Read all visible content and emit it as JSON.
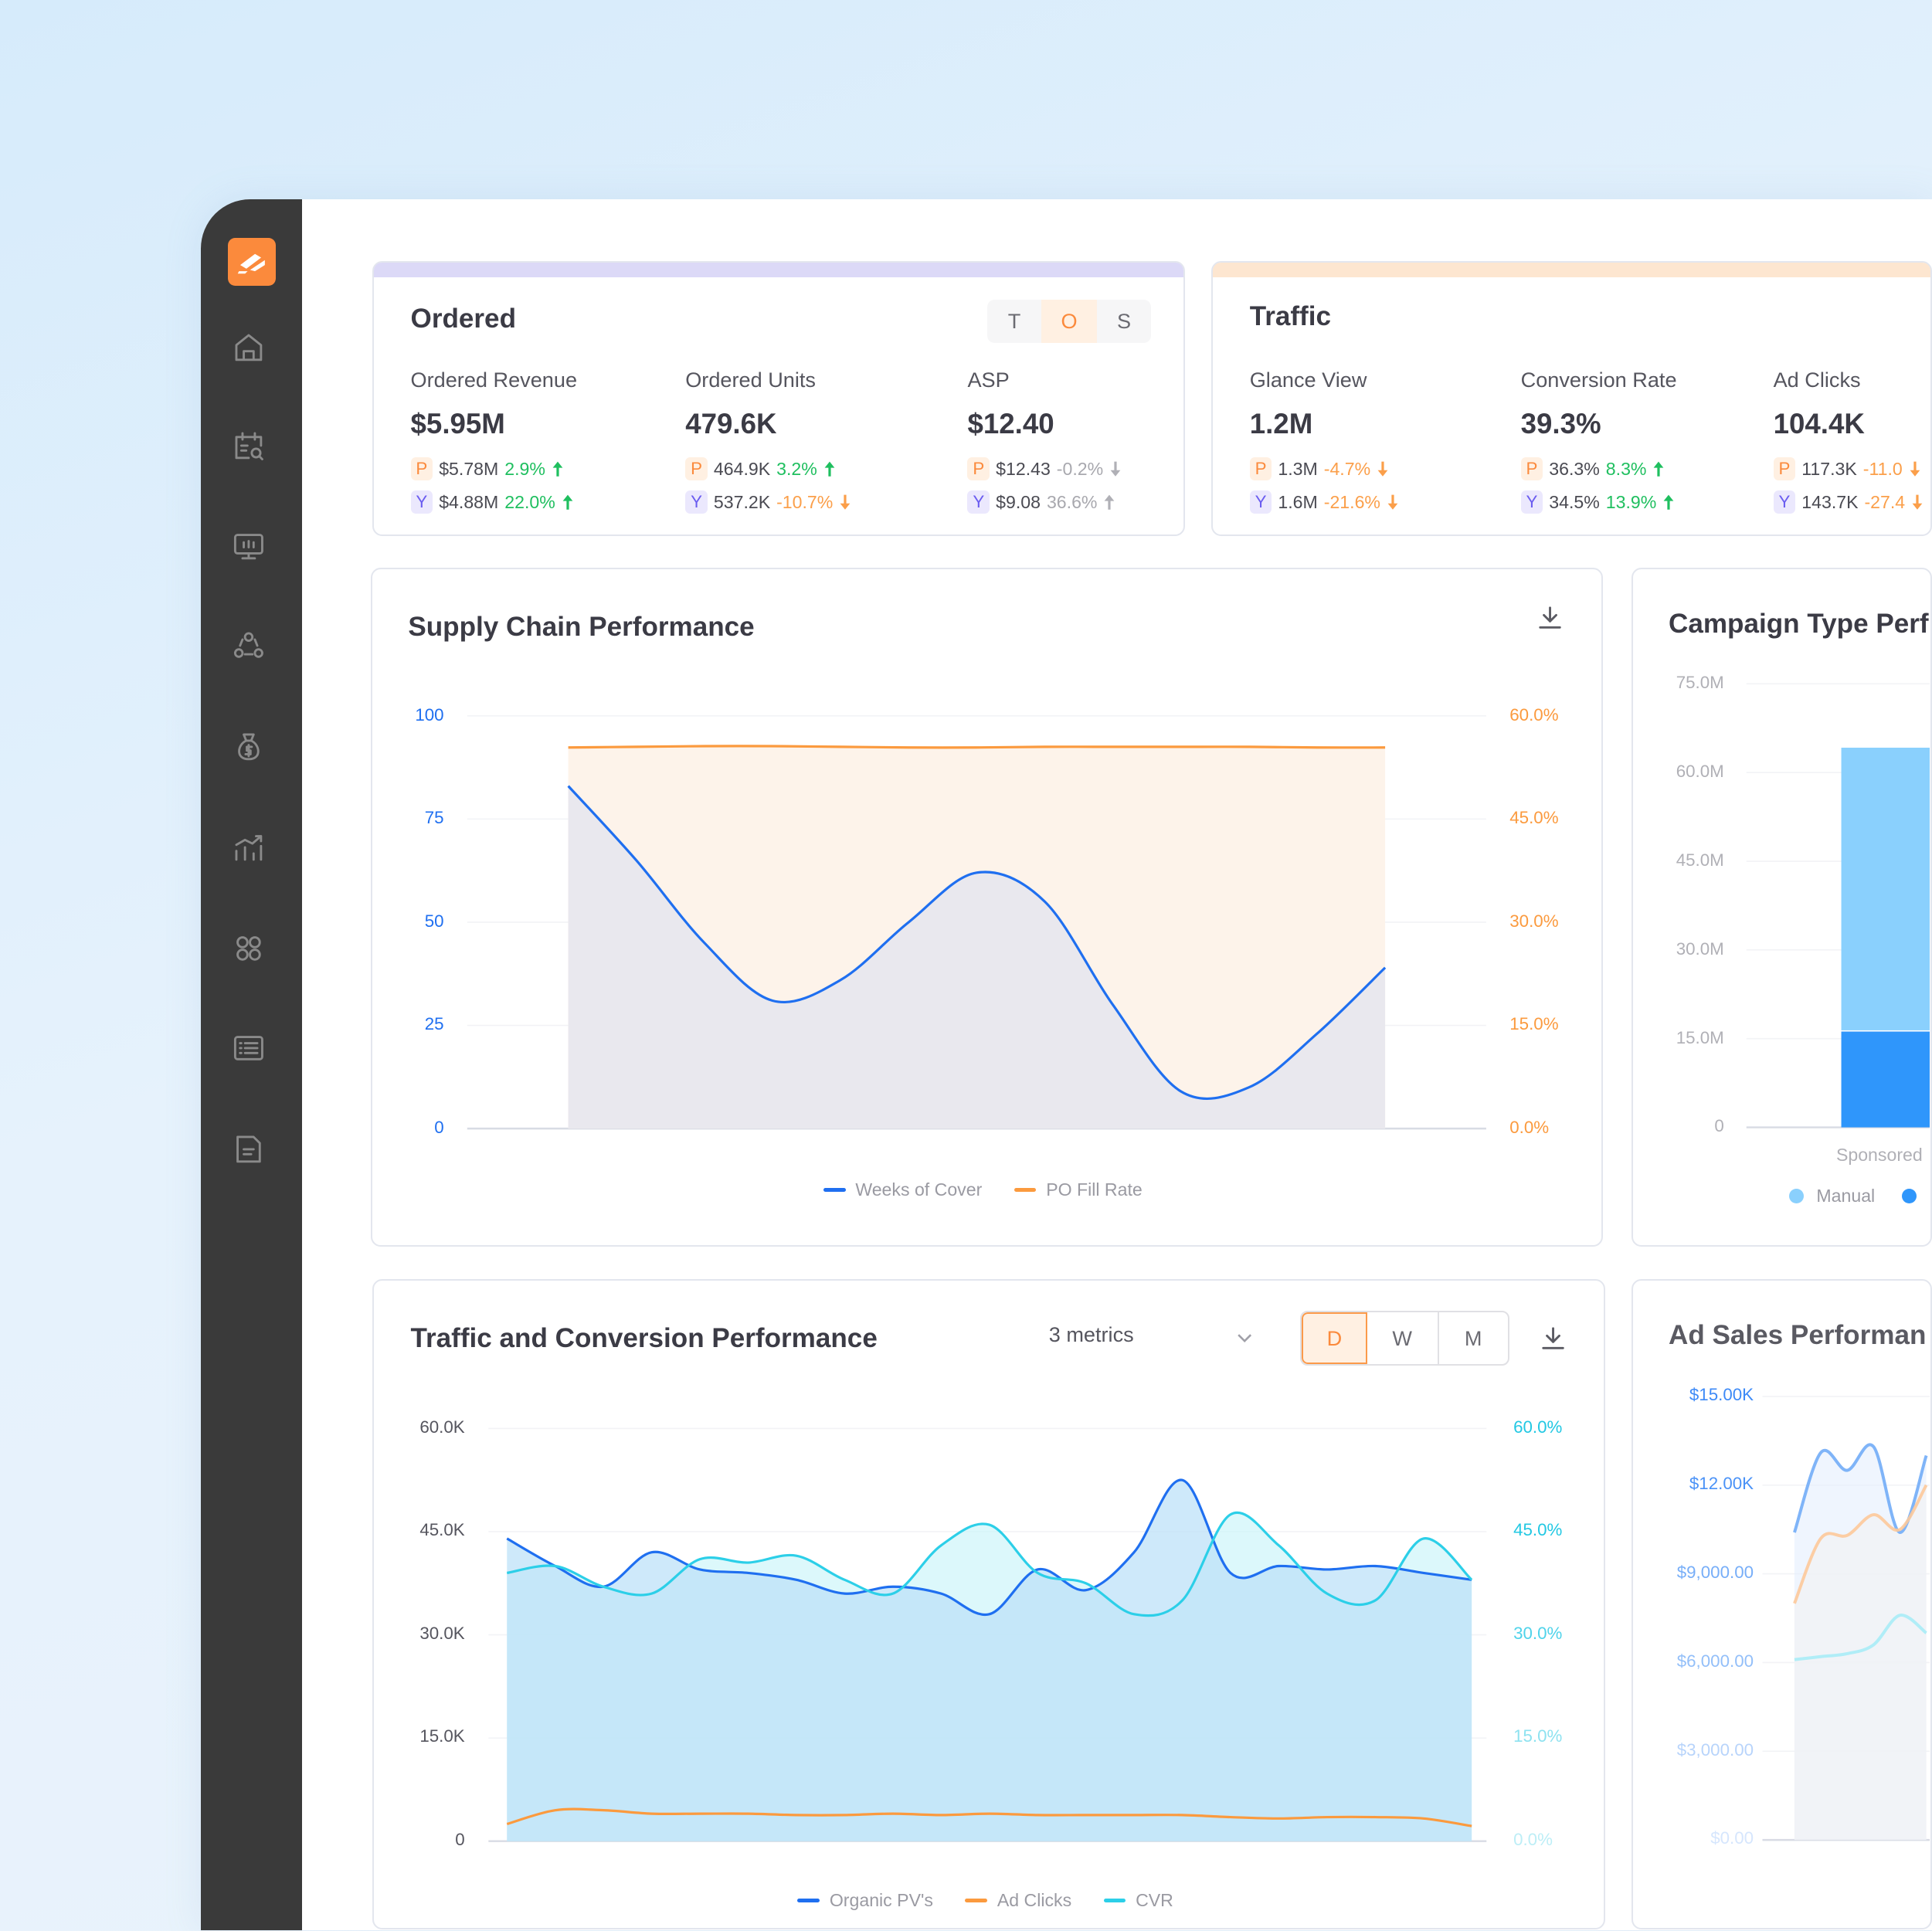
{
  "sidebar": {
    "logo": "logo",
    "items": [
      {
        "icon": "home-icon"
      },
      {
        "icon": "calendar-search-icon"
      },
      {
        "icon": "presentation-chart-icon"
      },
      {
        "icon": "network-icon"
      },
      {
        "icon": "money-bag-icon"
      },
      {
        "icon": "growth-chart-icon"
      },
      {
        "icon": "command-icon"
      },
      {
        "icon": "list-icon"
      },
      {
        "icon": "document-icon"
      }
    ]
  },
  "ordered": {
    "title": "Ordered",
    "toggle": [
      "T",
      "O",
      "S"
    ],
    "toggle_active": "O",
    "band_color": "#dcd9f7",
    "metrics": [
      {
        "label": "Ordered Revenue",
        "value": "$5.95M",
        "p_value": "$5.78M",
        "p_change": "2.9%",
        "p_dir": "up",
        "y_value": "$4.88M",
        "y_change": "22.0%",
        "y_dir": "up"
      },
      {
        "label": "Ordered Units",
        "value": "479.6K",
        "p_value": "464.9K",
        "p_change": "3.2%",
        "p_dir": "up",
        "y_value": "537.2K",
        "y_change": "-10.7%",
        "y_dir": "down"
      },
      {
        "label": "ASP",
        "value": "$12.40",
        "p_value": "$12.43",
        "p_change": "-0.2%",
        "p_dir": "neutral-down",
        "y_value": "$9.08",
        "y_change": "36.6%",
        "y_dir": "neutral-up"
      }
    ]
  },
  "traffic": {
    "title": "Traffic",
    "band_color": "#fde6d0",
    "metrics": [
      {
        "label": "Glance View",
        "value": "1.2M",
        "p_value": "1.3M",
        "p_change": "-4.7%",
        "p_dir": "down",
        "y_value": "1.6M",
        "y_change": "-21.6%",
        "y_dir": "down"
      },
      {
        "label": "Conversion Rate",
        "value": "39.3%",
        "p_value": "36.3%",
        "p_change": "8.3%",
        "p_dir": "up",
        "y_value": "34.5%",
        "y_change": "13.9%",
        "y_dir": "up"
      },
      {
        "label": "Ad Clicks",
        "value": "104.4K",
        "p_value": "117.3K",
        "p_change": "-11.0",
        "p_dir": "down",
        "y_value": "143.7K",
        "y_change": "-27.4",
        "y_dir": "down"
      }
    ]
  },
  "tags": {
    "p": "P",
    "y": "Y"
  },
  "supply": {
    "title": "Supply Chain Performance",
    "download_icon": "download-icon"
  },
  "campaign": {
    "title": "Campaign Type Perf"
  },
  "trafficConv": {
    "title": "Traffic and Conversion Performance",
    "metrics_select": "3 metrics",
    "periods": [
      "D",
      "W",
      "M"
    ],
    "period_active": "D"
  },
  "adSales": {
    "title": "Ad Sales Performan"
  },
  "chart_data": [
    {
      "type": "area",
      "title": "Supply Chain Performance",
      "y_left": {
        "ticks": [
          "100",
          "75",
          "50",
          "25",
          "0"
        ],
        "range": [
          0,
          100
        ]
      },
      "y_right": {
        "ticks": [
          "60.0%",
          "45.0%",
          "30.0%",
          "15.0%",
          "0.0%"
        ],
        "range": [
          0,
          60
        ]
      },
      "grid": true,
      "legend": "bottom",
      "series": [
        {
          "name": "Weeks of Cover",
          "axis": "left",
          "color": "#1f6ff0",
          "values": [
            83,
            65,
            45,
            31,
            36,
            50,
            62,
            55,
            30,
            9,
            10,
            23,
            39
          ]
        },
        {
          "name": "PO Fill Rate",
          "axis": "right",
          "color": "#fb9a3e",
          "values": [
            55.4,
            55.5,
            55.6,
            55.6,
            55.5,
            55.4,
            55.4,
            55.5,
            55.5,
            55.5,
            55.5,
            55.4,
            55.4
          ]
        }
      ]
    },
    {
      "type": "bar",
      "title": "Campaign Type Perf",
      "stacked": true,
      "categories": [
        "Sponsored"
      ],
      "y": {
        "ticks": [
          "75.0M",
          "60.0M",
          "45.0M",
          "30.0M",
          "15.0M",
          "0"
        ],
        "range": [
          0,
          75
        ]
      },
      "grid": true,
      "legend": "bottom",
      "series": [
        {
          "name": "",
          "color": "#2f96fb",
          "values": [
            16.2
          ]
        },
        {
          "name": "Manual",
          "color": "#8ad0fd",
          "values": [
            48
          ]
        }
      ]
    },
    {
      "type": "area",
      "title": "Traffic and Conversion Performance",
      "y_left": {
        "ticks": [
          "60.0K",
          "45.0K",
          "30.0K",
          "15.0K",
          "0"
        ],
        "range": [
          0,
          60
        ]
      },
      "y_right": {
        "ticks": [
          "60.0%",
          "45.0%",
          "30.0%",
          "15.0%",
          "0.0%"
        ],
        "range": [
          0,
          60
        ]
      },
      "grid": true,
      "legend": "bottom",
      "series": [
        {
          "name": "Organic PV's",
          "axis": "left",
          "color": "#1f6ff0",
          "values": [
            44,
            40,
            37,
            42,
            39.5,
            39,
            38,
            36,
            37,
            36,
            33,
            39.5,
            36.5,
            42,
            52.5,
            39,
            40,
            39.5,
            40,
            39,
            38
          ]
        },
        {
          "name": "Ad Clicks",
          "axis": "left",
          "color": "#fb9a3e",
          "values": [
            2.5,
            4.5,
            4.5,
            4,
            4,
            4,
            3.8,
            3.8,
            4,
            3.8,
            4,
            3.8,
            3.8,
            3.8,
            3.8,
            3.5,
            3.3,
            3.5,
            3.5,
            3.3,
            2.2
          ]
        },
        {
          "name": "CVR",
          "axis": "right",
          "color": "#2ccfe8",
          "values": [
            39,
            40,
            37,
            36,
            41,
            40.5,
            41.5,
            38,
            36,
            43,
            46,
            39,
            37.5,
            33,
            35,
            47.5,
            43,
            36,
            35,
            44,
            38
          ]
        }
      ]
    },
    {
      "type": "area",
      "title": "Ad Sales Performan",
      "y": {
        "ticks": [
          "$15.00K",
          "$12.00K",
          "$9,000.00",
          "$6,000.00",
          "$3,000.00",
          "$0.00"
        ],
        "range": [
          0,
          15000
        ]
      },
      "grid": true,
      "series": [
        {
          "color": "#7fb4f8",
          "values": [
            10400,
            13100,
            12500,
            13300,
            10400,
            13000
          ]
        },
        {
          "color": "#fdc99a",
          "values": [
            8000,
            10200,
            10300,
            11000,
            10500,
            12000
          ]
        },
        {
          "color": "#a8ecf6",
          "values": [
            6100,
            6200,
            6300,
            6600,
            7600,
            7000
          ]
        }
      ]
    }
  ]
}
